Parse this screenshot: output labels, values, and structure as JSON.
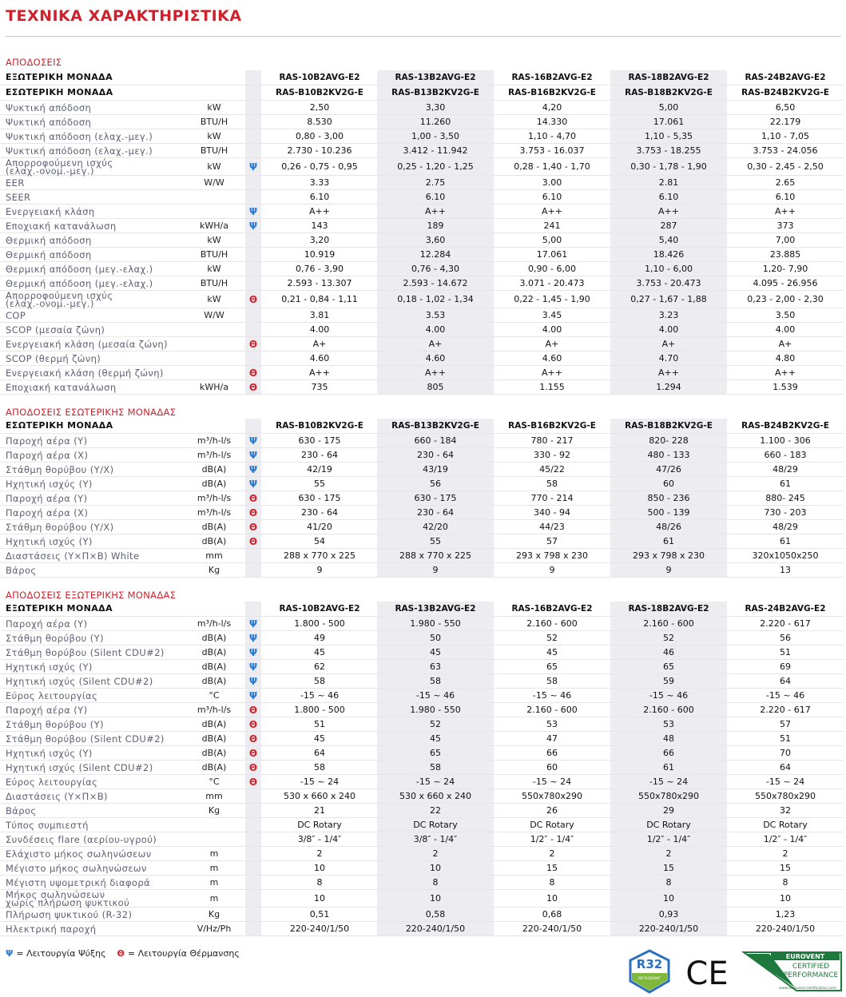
{
  "title": "ΤΕΧΝΙΚΑ ΧΑΡΑΚΤΗΡΙΣΤΙΚΑ",
  "symbol_colors": {
    "Ψ": "#2a7ad2",
    "Θ": "#d0202b"
  },
  "sections": [
    {
      "title": "ΑΠΟΔΟΣΕΙΣ",
      "header_rows": [
        {
          "label": "ΕΞΩΤΕΡΙΚΗ ΜΟΝΑΔΑ",
          "values": [
            "RAS-10B2AVG-E2",
            "RAS-13B2AVG-E2",
            "RAS-16B2AVG-E2",
            "RAS-18B2AVG-E2",
            "RAS-24B2AVG-E2"
          ]
        },
        {
          "label": "ΕΣΩΤΕΡΙΚΗ ΜΟΝΑΔΑ",
          "values": [
            "RAS-B10B2KV2G-E",
            "RAS-B13B2KV2G-E",
            "RAS-B16B2KV2G-E",
            "RAS-B18B2KV2G-E",
            "RAS-B24B2KV2G-E"
          ]
        }
      ],
      "rows": [
        {
          "label": "Ψυκτική απόδοση",
          "unit": "kW",
          "values": [
            "2,50",
            "3,30",
            "4,20",
            "5,00",
            "6,50"
          ]
        },
        {
          "label": "Ψυκτική απόδοση",
          "unit": "BTU/H",
          "values": [
            "8.530",
            "11.260",
            "14.330",
            "17.061",
            "22.179"
          ]
        },
        {
          "label": "Ψυκτική απόδοση (ελαχ.-μεγ.)",
          "unit": "kW",
          "values": [
            "0,80 - 3,00",
            "1,00 - 3,50",
            "1,10 - 4,70",
            "1,10 - 5,35",
            "1,10 - 7,05"
          ]
        },
        {
          "label": "Ψυκτική απόδοση (ελαχ.-μεγ.)",
          "unit": "BTU/H",
          "values": [
            "2.730 - 10.236",
            "3.412 - 11.942",
            "3.753 - 16.037",
            "3.753 - 18.255",
            "3.753 - 24.056"
          ]
        },
        {
          "label": "Απορροφούμενη ισχύς\n(ελαχ.-ονομ.-μεγ.)",
          "unit": "kW",
          "mode": "Ψ",
          "values": [
            "0,26 - 0,75 - 0,95",
            "0,25 - 1,20 - 1,25",
            "0,28 - 1,40 - 1,70",
            "0,30 - 1,78 - 1,90",
            "0,30 - 2,45 - 2,50"
          ]
        },
        {
          "label": "EER",
          "unit": "W/W",
          "values": [
            "3.33",
            "2.75",
            "3.00",
            "2.81",
            "2.65"
          ]
        },
        {
          "label": "SEER",
          "values": [
            "6.10",
            "6.10",
            "6.10",
            "6.10",
            "6.10"
          ]
        },
        {
          "label": "Ενεργειακή κλάση",
          "mode": "Ψ",
          "values": [
            "A++",
            "A++",
            "A++",
            "A++",
            "A++"
          ]
        },
        {
          "label": "Εποχιακή κατανάλωση",
          "unit": "kWH/a",
          "mode": "Ψ",
          "values": [
            "143",
            "189",
            "241",
            "287",
            "373"
          ]
        },
        {
          "label": "Θερμική απόδοση",
          "unit": "kW",
          "values": [
            "3,20",
            "3,60",
            "5,00",
            "5,40",
            "7,00"
          ]
        },
        {
          "label": "Θερμική απόδοση",
          "unit": "BTU/H",
          "values": [
            "10.919",
            "12.284",
            "17.061",
            "18.426",
            "23.885"
          ]
        },
        {
          "label": "Θερμική απόδοση (μεγ.-ελαχ.)",
          "unit": "kW",
          "values": [
            "0,76 - 3,90",
            "0,76 - 4,30",
            "0,90 - 6,00",
            "1,10 - 6,00",
            "1,20- 7,90"
          ]
        },
        {
          "label": "Θερμική απόδοση (μεγ.-ελαχ.)",
          "unit": "BTU/H",
          "values": [
            "2.593 - 13.307",
            "2.593 - 14.672",
            "3.071 - 20.473",
            "3.753 - 20.473",
            "4.095 - 26.956"
          ]
        },
        {
          "label": "Απορροφούμενη ισχύς\n(ελαχ.-ονομ.-μεγ.)",
          "unit": "kW",
          "mode": "Θ",
          "values": [
            "0,21 - 0,84 - 1,11",
            "0,18 - 1,02 - 1,34",
            "0,22 - 1,45 - 1,90",
            "0,27 - 1,67 - 1,88",
            "0,23 - 2,00 - 2,30"
          ]
        },
        {
          "label": "COP",
          "unit": "W/W",
          "values": [
            "3.81",
            "3.53",
            "3.45",
            "3.23",
            "3.50"
          ]
        },
        {
          "label": "SCOP (μεσαία ζώνη)",
          "values": [
            "4.00",
            "4.00",
            "4.00",
            "4.00",
            "4.00"
          ]
        },
        {
          "label": "Ενεργειακή κλάση (μεσαία ζώνη)",
          "mode": "Θ",
          "values": [
            "A+",
            "A+",
            "A+",
            "A+",
            "A+"
          ]
        },
        {
          "label": "SCOP (θερμή ζώνη)",
          "values": [
            "4.60",
            "4.60",
            "4.60",
            "4.70",
            "4.80"
          ]
        },
        {
          "label": "Ενεργειακή κλάση (θερμή ζώνη)",
          "mode": "Θ",
          "values": [
            "A++",
            "A++",
            "A++",
            "A++",
            "A++"
          ]
        },
        {
          "label": "Εποχιακή κατανάλωση",
          "unit": "kWH/a",
          "mode": "Θ",
          "values": [
            "735",
            "805",
            "1.155",
            "1.294",
            "1.539"
          ]
        }
      ]
    },
    {
      "title": "ΑΠΟΔΟΣΕΙΣ ΕΣΩΤΕΡΙΚΗΣ ΜΟΝΑΔΑΣ",
      "header_rows": [
        {
          "label": "ΕΣΩΤΕΡΙΚΗ ΜΟΝΑΔΑ",
          "values": [
            "RAS-B10B2KV2G-E",
            "RAS-B13B2KV2G-E",
            "RAS-B16B2KV2G-E",
            "RAS-B18B2KV2G-E",
            "RAS-B24B2KV2G-E"
          ]
        }
      ],
      "rows": [
        {
          "label": "Παροχή αέρα (Υ)",
          "unit": "m³/h-l/s",
          "mode": "Ψ",
          "values": [
            "630 - 175",
            "660 - 184",
            "780 - 217",
            "820- 228",
            "1.100 - 306"
          ]
        },
        {
          "label": "Παροχή αέρα (Χ)",
          "unit": "m³/h-l/s",
          "mode": "Ψ",
          "values": [
            "230 - 64",
            "230 - 64",
            "330 - 92",
            "480 - 133",
            "660 - 183"
          ]
        },
        {
          "label": "Στάθμη θορύβου (Υ/Χ)",
          "unit": "dB(A)",
          "mode": "Ψ",
          "values": [
            "42/19",
            "43/19",
            "45/22",
            "47/26",
            "48/29"
          ]
        },
        {
          "label": "Ηχητική ισχύς (Υ)",
          "unit": "dB(A)",
          "mode": "Ψ",
          "values": [
            "55",
            "56",
            "58",
            "60",
            "61"
          ]
        },
        {
          "label": "Παροχή αέρα (Υ)",
          "unit": "m³/h-l/s",
          "mode": "Θ",
          "values": [
            "630 - 175",
            "630 - 175",
            "770 - 214",
            "850 - 236",
            "880- 245"
          ]
        },
        {
          "label": "Παροχή αέρα (Χ)",
          "unit": "m³/h-l/s",
          "mode": "Θ",
          "values": [
            "230 - 64",
            "230 - 64",
            "340 - 94",
            "500 - 139",
            "730 - 203"
          ]
        },
        {
          "label": "Στάθμη θορύβου (Υ/Χ)",
          "unit": "dB(A)",
          "mode": "Θ",
          "values": [
            "41/20",
            "42/20",
            "44/23",
            "48/26",
            "48/29"
          ]
        },
        {
          "label": "Ηχητική ισχύς (Υ)",
          "unit": "dB(A)",
          "mode": "Θ",
          "values": [
            "54",
            "55",
            "57",
            "61",
            "61"
          ]
        },
        {
          "label": "Διαστάσεις (Υ×Π×Β) White",
          "unit": "mm",
          "values": [
            "288 x 770 x 225",
            "288 x 770 x 225",
            "293 x 798 x 230",
            "293 x 798 x 230",
            "320x1050x250"
          ]
        },
        {
          "label": "Βάρος",
          "unit": "Kg",
          "values": [
            "9",
            "9",
            "9",
            "9",
            "13"
          ]
        }
      ]
    },
    {
      "title": "ΑΠΟΔΟΣΕΙΣ ΕΞΩΤΕΡΙΚΗΣ ΜΟΝΑΔΑΣ",
      "header_rows": [
        {
          "label": "ΕΞΩΤΕΡΙΚΗ ΜΟΝΑΔΑ",
          "values": [
            "RAS-10B2AVG-E2",
            "RAS-13B2AVG-E2",
            "RAS-16B2AVG-E2",
            "RAS-18B2AVG-E2",
            "RAS-24B2AVG-E2"
          ]
        }
      ],
      "rows": [
        {
          "label": "Παροχή αέρα (Υ)",
          "unit": "m³/h-l/s",
          "mode": "Ψ",
          "values": [
            "1.800 - 500",
            "1.980 - 550",
            "2.160 - 600",
            "2.160 - 600",
            "2.220 - 617"
          ]
        },
        {
          "label": "Στάθμη θορύβου (Υ)",
          "unit": "dB(A)",
          "mode": "Ψ",
          "values": [
            "49",
            "50",
            "52",
            "52",
            "56"
          ]
        },
        {
          "label": "Στάθμη θορύβου (Silent CDU#2)",
          "unit": "dB(A)",
          "mode": "Ψ",
          "values": [
            "45",
            "45",
            "45",
            "46",
            "51"
          ]
        },
        {
          "label": "Ηχητική ισχύς (Υ)",
          "unit": "dB(A)",
          "mode": "Ψ",
          "values": [
            "62",
            "63",
            "65",
            "65",
            "69"
          ]
        },
        {
          "label": "Ηχητική ισχύς (Silent CDU#2)",
          "unit": "dB(A)",
          "mode": "Ψ",
          "values": [
            "58",
            "58",
            "58",
            "59",
            "64"
          ]
        },
        {
          "label": "Εύρος λειτουργίας",
          "unit": "°C",
          "mode": "Ψ",
          "values": [
            "-15 ~ 46",
            "-15 ~ 46",
            "-15 ~ 46",
            "-15 ~ 46",
            "-15 ~ 46"
          ]
        },
        {
          "label": "Παροχή αέρα (Υ)",
          "unit": "m³/h-l/s",
          "mode": "Θ",
          "values": [
            "1.800 - 500",
            "1.980 - 550",
            "2.160 - 600",
            "2.160 - 600",
            "2.220 - 617"
          ]
        },
        {
          "label": "Στάθμη θορύβου (Υ)",
          "unit": "dB(A)",
          "mode": "Θ",
          "values": [
            "51",
            "52",
            "53",
            "53",
            "57"
          ]
        },
        {
          "label": "Στάθμη θορύβου (Silent CDU#2)",
          "unit": "dB(A)",
          "mode": "Θ",
          "values": [
            "45",
            "45",
            "47",
            "48",
            "51"
          ]
        },
        {
          "label": "Ηχητική ισχύς (Υ)",
          "unit": "dB(A)",
          "mode": "Θ",
          "values": [
            "64",
            "65",
            "66",
            "66",
            "70"
          ]
        },
        {
          "label": "Ηχητική ισχύς (Silent CDU#2)",
          "unit": "dB(A)",
          "mode": "Θ",
          "values": [
            "58",
            "58",
            "60",
            "61",
            "64"
          ]
        },
        {
          "label": "Εύρος λειτουργίας",
          "unit": "°C",
          "mode": "Θ",
          "values": [
            "-15 ~ 24",
            "-15 ~ 24",
            "-15 ~ 24",
            "-15 ~ 24",
            "-15 ~ 24"
          ]
        },
        {
          "label": "Διαστάσεις (Υ×Π×Β)",
          "unit": "mm",
          "values": [
            "530 x 660 x 240",
            "530 x 660 x 240",
            "550x780x290",
            "550x780x290",
            "550x780x290"
          ]
        },
        {
          "label": "Βάρος",
          "unit": "Kg",
          "values": [
            "21",
            "22",
            "26",
            "29",
            "32"
          ]
        },
        {
          "label": "Τύπος συμπιεστή",
          "values": [
            "DC Rotary",
            "DC Rotary",
            "DC Rotary",
            "DC Rotary",
            "DC Rotary"
          ]
        },
        {
          "label": "Συνδέσεις flare (αερίου-υγρού)",
          "values": [
            "3/8″ - 1/4″",
            "3/8″ - 1/4″",
            "1/2″ - 1/4″",
            "1/2″ - 1/4″",
            "1/2″ - 1/4″"
          ]
        },
        {
          "label": "Ελάχιστο μήκος σωληνώσεων",
          "unit": "m",
          "values": [
            "2",
            "2",
            "2",
            "2",
            "2"
          ]
        },
        {
          "label": "Μέγιστο μήκος σωληνώσεων",
          "unit": "m",
          "values": [
            "10",
            "10",
            "15",
            "15",
            "15"
          ]
        },
        {
          "label": "Μέγιστη υψομετρική διαφορά",
          "unit": "m",
          "values": [
            "8",
            "8",
            "8",
            "8",
            "8"
          ]
        },
        {
          "label": "Μήκος σωληνώσεων\nχωρίς πλήρωση ψυκτικού",
          "unit": "m",
          "values": [
            "10",
            "10",
            "10",
            "10",
            "10"
          ]
        },
        {
          "label": "Πλήρωση ψυκτικού (R-32)",
          "unit": "Kg",
          "values": [
            "0,51",
            "0,58",
            "0,68",
            "0,93",
            "1,23"
          ]
        },
        {
          "label": "Ηλεκτρική παροχή",
          "unit": "V/Hz/Ph",
          "values": [
            "220-240/1/50",
            "220-240/1/50",
            "220-240/1/50",
            "220-240/1/50",
            "220-240/1/50"
          ]
        }
      ]
    }
  ],
  "legend": [
    {
      "symbol": "Ψ",
      "text": "= Λειτουργία Ψύξης"
    },
    {
      "symbol": "Θ",
      "text": "= Λειτουργία Θέρμανσης"
    }
  ],
  "logos": {
    "r32": {
      "label": "R32",
      "sub": "REFRIGERANT"
    },
    "ce": "CE",
    "eurovent": {
      "name": "EUROVENT",
      "line1": "CERTIFIED",
      "line2": "PERFORMANCE",
      "url": "www.eurovent-certification.com"
    }
  }
}
